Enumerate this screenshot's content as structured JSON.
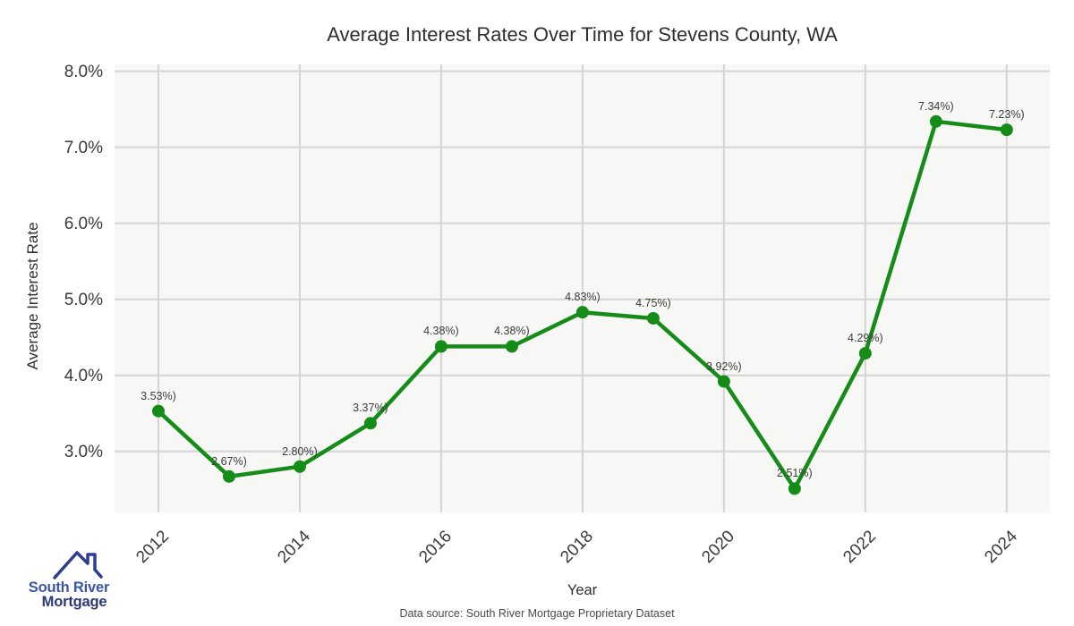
{
  "chart_data": {
    "type": "line",
    "title": "Average Interest Rates Over Time for Stevens County, WA",
    "xlabel": "Year",
    "ylabel": "Average Interest Rate",
    "x": [
      2012,
      2013,
      2014,
      2015,
      2016,
      2017,
      2018,
      2019,
      2020,
      2021,
      2022,
      2023,
      2024
    ],
    "values": [
      3.53,
      2.67,
      2.8,
      3.37,
      4.38,
      4.38,
      4.83,
      4.75,
      3.92,
      2.51,
      4.29,
      7.34,
      7.23
    ],
    "point_labels": [
      "3.53%)",
      "2.67%)",
      "2.80%)",
      "3.37%)",
      "4.38%)",
      "4.38%)",
      "4.83%)",
      "4.75%)",
      "3.92%)",
      "2.51%)",
      "4.29%)",
      "7.34%)",
      "7.23%)"
    ],
    "x_tick_values": [
      2012,
      2014,
      2016,
      2018,
      2020,
      2022,
      2024
    ],
    "x_tick_labels": [
      "2012",
      "2014",
      "2016",
      "2018",
      "2020",
      "2022",
      "2024"
    ],
    "y_tick_values": [
      8.0,
      7.0,
      6.0,
      5.0,
      4.0,
      3.0
    ],
    "y_tick_labels": [
      "8.0%",
      "7.0%",
      "6.0%",
      "5.0%",
      "4.0%",
      "3.0%"
    ],
    "xlim": [
      2011.38,
      2024.61
    ],
    "ylim": [
      2.15,
      8.09
    ],
    "grid": true,
    "legend": "none",
    "line_color": "#168c18",
    "marker_color": "#168c18",
    "plot_bg": "#f7f7f6",
    "grid_color": "#d4d4d4"
  },
  "footer": {
    "data_source": "Data source: South River Mortgage Proprietary Dataset"
  },
  "logo": {
    "line1": "South River",
    "line2": "Mortgage",
    "icon": "house-roof-icon",
    "icon_color": "#2e3d8f",
    "line1_color": "#3c55a8",
    "line2_color": "#2b3878"
  }
}
